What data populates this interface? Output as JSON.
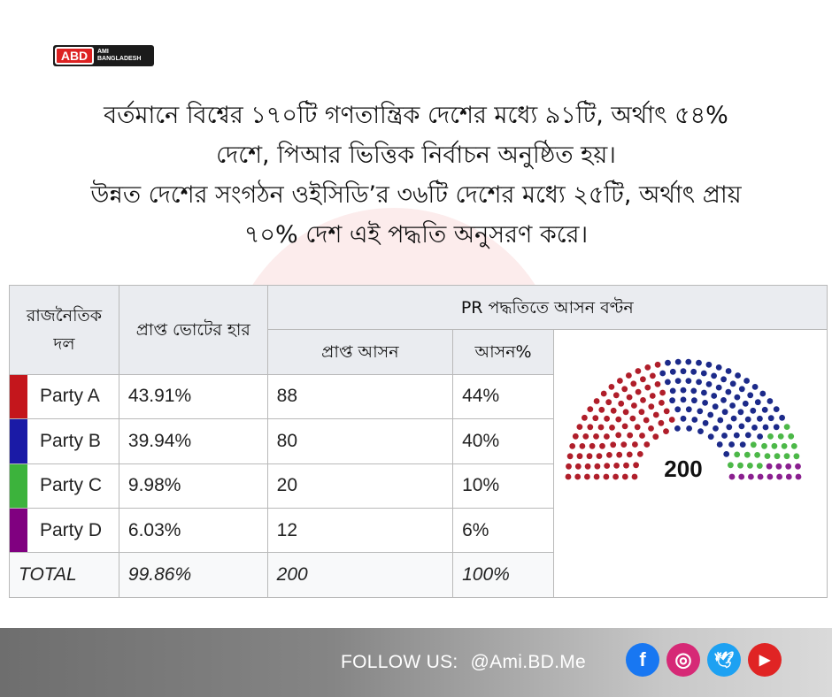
{
  "logo": {
    "mark": "ABD",
    "line1": "AMI",
    "line2": "BANGLADESH"
  },
  "watermark": "ABD",
  "headline": {
    "line1": "বর্তমানে বিশ্বের ১৭০টি গণতান্ত্রিক দেশের মধ্যে ৯১টি, অর্থাৎ ৫৪%",
    "line2": "দেশে, পিআর ভিত্তিক নির্বাচন অনুষ্ঠিত হয়।",
    "line3": "উন্নত দেশের সংগঠন ওইসিডি’র ৩৬টি দেশের মধ্যে ২৫টি, অর্থাৎ প্রায়",
    "line4": "৭০% দেশ এই পদ্ধতি অনুসরণ করে।"
  },
  "table": {
    "col_party": "রাজনৈতিক দল",
    "col_vote": "প্রাপ্ত ভোটের হার",
    "col_group": "PR পদ্ধতিতে আসন বণ্টন",
    "col_seats": "প্রাপ্ত আসন",
    "col_seat_pct": "আসন%",
    "rows": [
      {
        "party": "Party A",
        "vote": "43.91%",
        "seats": "88",
        "seat_pct": "44%",
        "color": "#c4161c"
      },
      {
        "party": "Party B",
        "vote": "39.94%",
        "seats": "80",
        "seat_pct": "40%",
        "color": "#1a1aa6"
      },
      {
        "party": "Party C",
        "vote": "9.98%",
        "seats": "20",
        "seat_pct": "10%",
        "color": "#3cb33c"
      },
      {
        "party": "Party D",
        "vote": "6.03%",
        "seats": "12",
        "seat_pct": "6%",
        "color": "#800080"
      }
    ],
    "total": {
      "label": "TOTAL",
      "vote": "99.86%",
      "seats": "200",
      "seat_pct": "100%"
    }
  },
  "seat_chart": {
    "total_label": "200",
    "parties": [
      {
        "seats": 88,
        "color": "#b01e2a"
      },
      {
        "seats": 80,
        "color": "#1c2a8a"
      },
      {
        "seats": 20,
        "color": "#4cb848"
      },
      {
        "seats": 12,
        "color": "#8a1f8f"
      }
    ]
  },
  "footer": {
    "follow_label": "FOLLOW US:",
    "handle": "@Ami.BD.Me",
    "icons": [
      {
        "name": "facebook-icon",
        "glyph": "f",
        "color": "#1877f2"
      },
      {
        "name": "instagram-icon",
        "glyph": "◎",
        "color": "#d62976"
      },
      {
        "name": "twitter-icon",
        "glyph": "🕊",
        "color": "#1da1f2"
      },
      {
        "name": "youtube-icon",
        "glyph": "▶",
        "color": "#e02424"
      }
    ]
  }
}
